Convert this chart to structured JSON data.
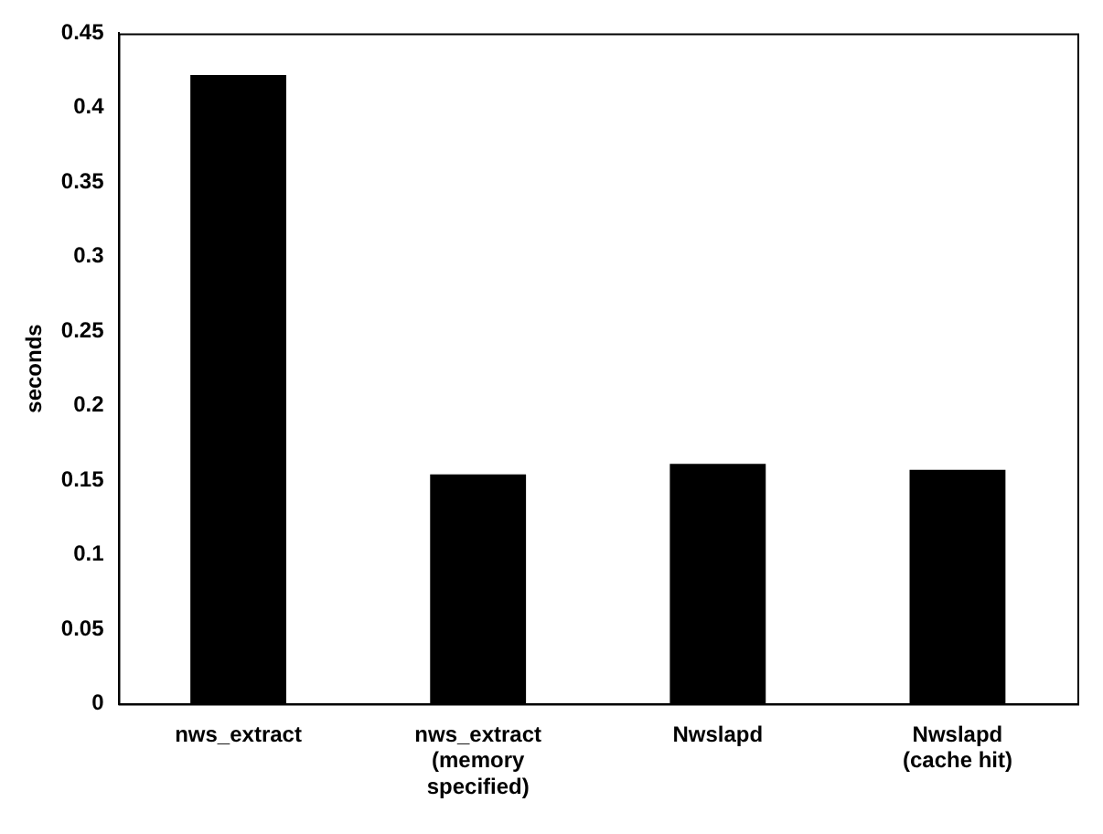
{
  "chart_data": {
    "type": "bar",
    "ylabel": "seconds",
    "categories": [
      "nws_extract",
      "nws_extract (memory specified)",
      "Nwslapd",
      "Nwslapd (cache hit)"
    ],
    "values": [
      0.422,
      0.154,
      0.161,
      0.157
    ],
    "color": "#000000",
    "ylim": [
      0,
      0.45
    ],
    "yticks": [
      0,
      0.05,
      0.1,
      0.15,
      0.2,
      0.25,
      0.3,
      0.35,
      0.4,
      0.45
    ],
    "grid": false,
    "legend": false
  }
}
